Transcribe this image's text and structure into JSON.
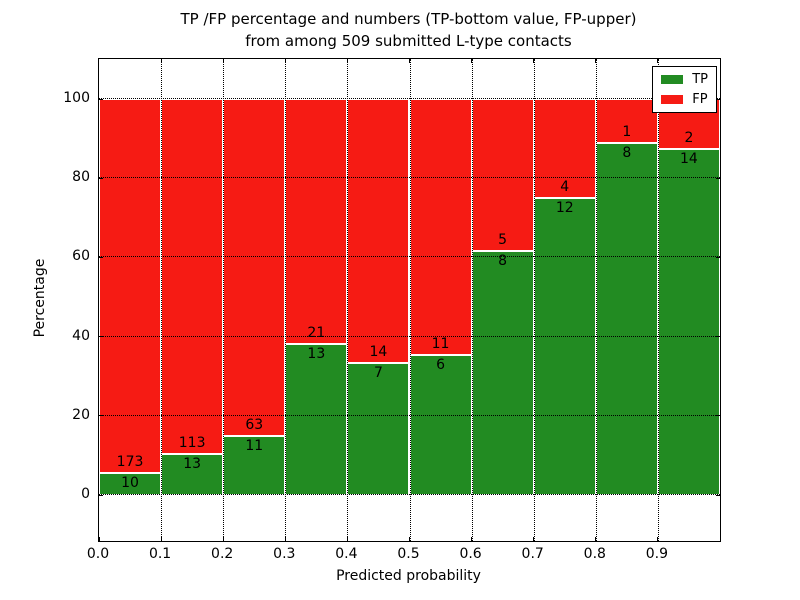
{
  "title": {
    "line1": "TP /FP percentage and numbers (TP-bottom value, FP-upper)",
    "line2": "from among 509 submitted L-type contacts"
  },
  "axes": {
    "xlabel": "Predicted probability",
    "ylabel": "Percentage",
    "x_tick_labels": [
      "0.0",
      "0.1",
      "0.2",
      "0.3",
      "0.4",
      "0.5",
      "0.6",
      "0.7",
      "0.8",
      "0.9"
    ],
    "x_tick_values": [
      0.0,
      0.1,
      0.2,
      0.3,
      0.4,
      0.5,
      0.6,
      0.7,
      0.8,
      0.9
    ],
    "y_tick_labels": [
      "0",
      "20",
      "40",
      "60",
      "80",
      "100"
    ],
    "y_tick_values": [
      0,
      20,
      40,
      60,
      80,
      100
    ],
    "xlim": [
      0.0,
      1.0
    ],
    "ylim": [
      -11.6,
      110.1
    ],
    "grid": "dotted"
  },
  "legend": {
    "position": "upper-right",
    "items": [
      {
        "label": "TP",
        "color": "#228B22"
      },
      {
        "label": "FP",
        "color": "#F61B14"
      }
    ]
  },
  "colors": {
    "tp": "#228B22",
    "fp": "#F61B14",
    "background": "#FFFFFF",
    "text": "#000000"
  },
  "chart_data": {
    "type": "bar",
    "stacked": true,
    "normalized_to_percent": true,
    "title": "TP /FP percentage and numbers (TP-bottom value, FP-upper) from among 509 submitted L-type contacts",
    "xlabel": "Predicted probability",
    "ylabel": "Percentage",
    "bin_edges": [
      0.0,
      0.1,
      0.2,
      0.3,
      0.4,
      0.5,
      0.6,
      0.7,
      0.8,
      0.9,
      1.0
    ],
    "categories": [
      "0.0-0.1",
      "0.1-0.2",
      "0.2-0.3",
      "0.3-0.4",
      "0.4-0.5",
      "0.5-0.6",
      "0.6-0.7",
      "0.7-0.8",
      "0.8-0.9",
      "0.9-1.0"
    ],
    "series": [
      {
        "name": "TP",
        "color": "#228B22",
        "values": [
          10,
          13,
          11,
          13,
          7,
          6,
          8,
          12,
          8,
          14
        ]
      },
      {
        "name": "FP",
        "color": "#F61B14",
        "values": [
          173,
          113,
          63,
          21,
          14,
          11,
          5,
          4,
          1,
          2
        ]
      }
    ],
    "total_contacts_shown_in_title": 509,
    "ylim": [
      -11.6,
      110.1
    ],
    "legend_position": "upper right",
    "grid": true
  }
}
